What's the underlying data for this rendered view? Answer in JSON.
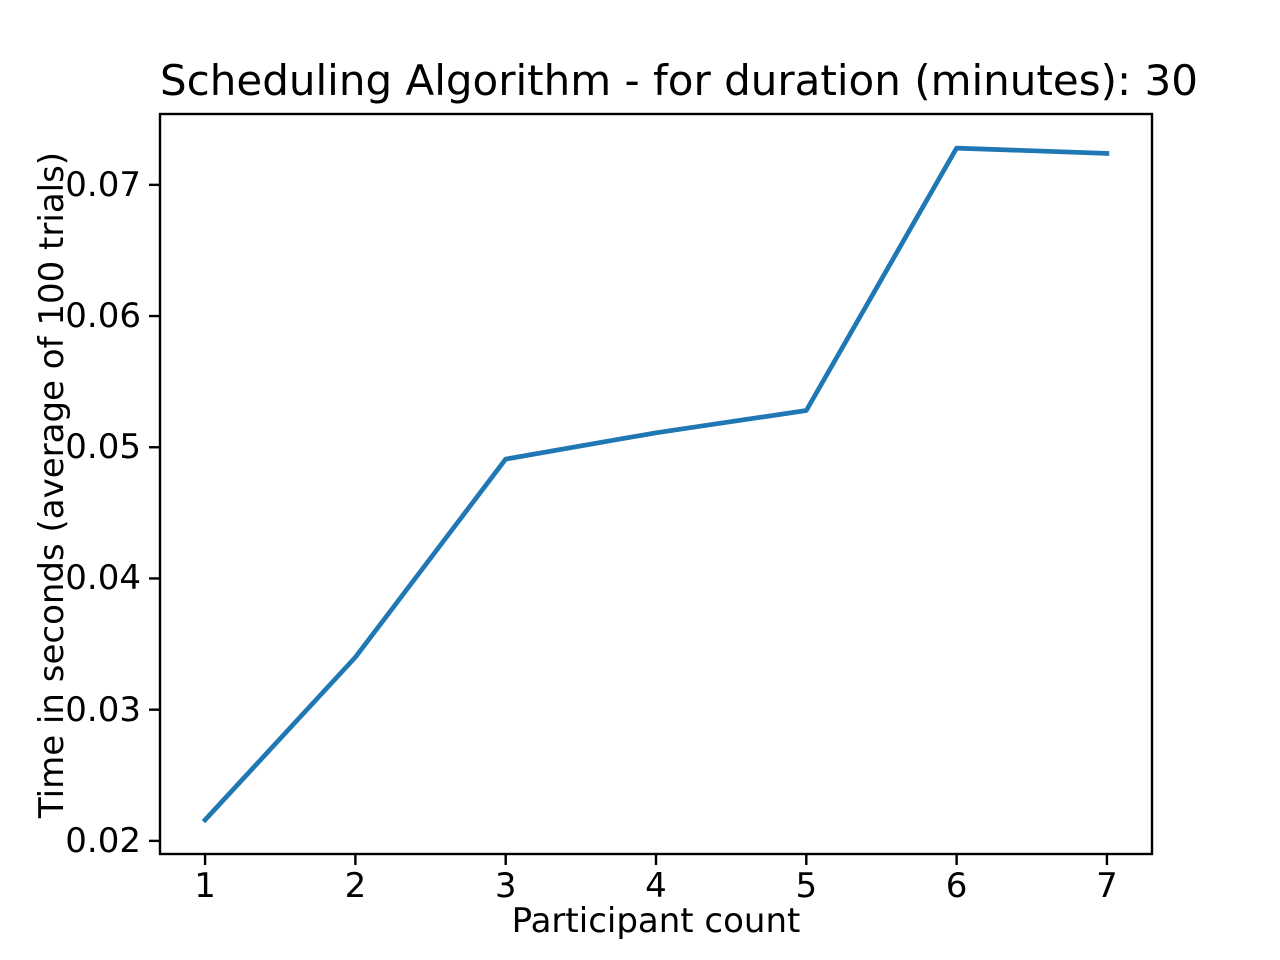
{
  "figure": {
    "background": "#ffffff"
  },
  "chart_data": {
    "type": "line",
    "title": "Scheduling Algorithm - for duration (minutes): 30",
    "xlabel": "Participant count",
    "ylabel": "Time in seconds (average of 100 trials)",
    "x": [
      1,
      2,
      3,
      4,
      5,
      6,
      7
    ],
    "values": [
      0.0216,
      0.034,
      0.0491,
      0.0511,
      0.0528,
      0.0728,
      0.0724
    ],
    "xlim": [
      0.7,
      7.3
    ],
    "ylim": [
      0.019,
      0.0754
    ],
    "xticks": {
      "values": [
        1,
        2,
        3,
        4,
        5,
        6,
        7
      ],
      "labels": [
        "1",
        "2",
        "3",
        "4",
        "5",
        "6",
        "7"
      ]
    },
    "yticks": {
      "values": [
        0.02,
        0.03,
        0.04,
        0.05,
        0.06,
        0.07
      ],
      "labels": [
        "0.02",
        "0.03",
        "0.04",
        "0.05",
        "0.06",
        "0.07"
      ]
    },
    "grid": false,
    "legend": "none",
    "line_color": "#1f77b4",
    "axis_color": "#000000"
  }
}
